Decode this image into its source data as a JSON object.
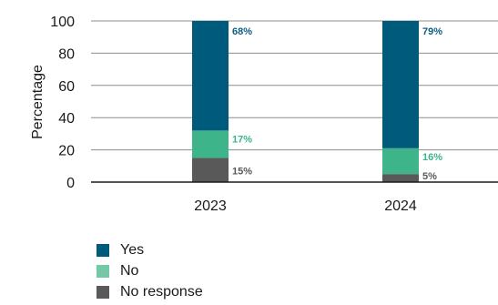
{
  "chart_data": {
    "type": "bar",
    "stacked": true,
    "ylabel": "Percentage",
    "xlabel": "",
    "ylim": [
      0,
      100
    ],
    "yticks": [
      0,
      20,
      40,
      60,
      80,
      100
    ],
    "categories": [
      "2023",
      "2024"
    ],
    "grid": true,
    "legend_position": "bottom-left",
    "series": [
      {
        "name": "No response",
        "values": [
          15,
          5
        ],
        "labels": [
          "15%",
          "5%"
        ],
        "color": "#595959",
        "label_color": "#595959"
      },
      {
        "name": "No",
        "values": [
          17,
          16
        ],
        "labels": [
          "17%",
          "16%"
        ],
        "color": "#3db48a",
        "label_color": "#3db48a"
      },
      {
        "name": "Yes",
        "values": [
          68,
          79
        ],
        "labels": [
          "68%",
          "79%"
        ],
        "color": "#005a7c",
        "label_color": "#0b5f80"
      }
    ],
    "legend": [
      "Yes",
      "No",
      "No response"
    ]
  }
}
